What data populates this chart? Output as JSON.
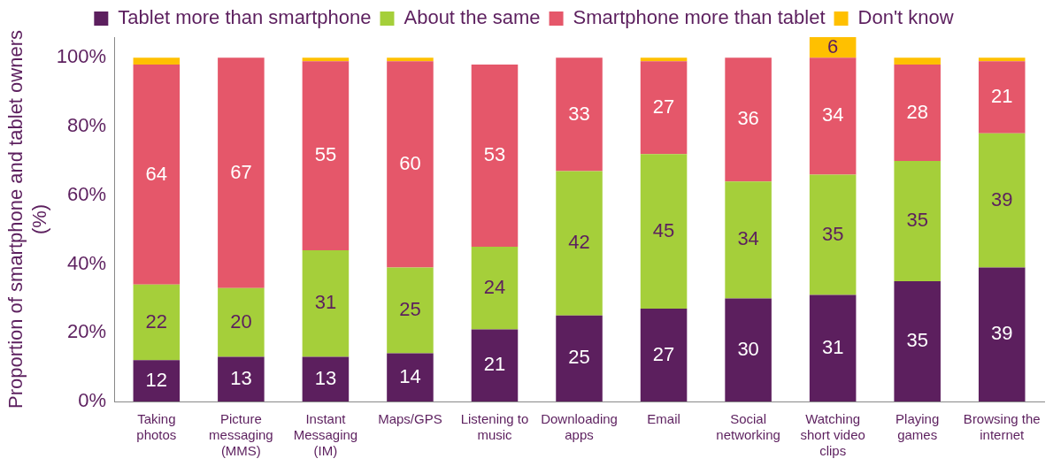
{
  "chart_data": {
    "type": "bar",
    "stacked": true,
    "categories": [
      "Taking photos",
      "Picture messaging (MMS)",
      "Instant Messaging (IM)",
      "Maps/GPS",
      "Listening to music",
      "Downloading apps",
      "Email",
      "Social networking",
      "Watching short video clips",
      "Playing games",
      "Browsing the internet"
    ],
    "series": [
      {
        "name": "Tablet more than smartphone",
        "color": "#5c1f5e",
        "values": [
          12,
          13,
          13,
          14,
          21,
          25,
          27,
          30,
          31,
          35,
          39
        ],
        "value_labels": [
          "12",
          "13",
          "13",
          "14",
          "21",
          "25",
          "27",
          "30",
          "31",
          "35",
          "39"
        ]
      },
      {
        "name": "About the same",
        "color": "#a5cf3a",
        "values": [
          22,
          20,
          31,
          25,
          24,
          42,
          45,
          34,
          35,
          35,
          39
        ],
        "value_labels": [
          "22",
          "20",
          "31",
          "25",
          "24",
          "42",
          "45",
          "34",
          "35",
          "35",
          "39"
        ]
      },
      {
        "name": "Smartphone more than tablet",
        "color": "#e5576a",
        "values": [
          64,
          67,
          55,
          60,
          53,
          33,
          27,
          36,
          34,
          28,
          21
        ],
        "value_labels": [
          "64",
          "67",
          "55",
          "60",
          "53",
          "33",
          "27",
          "36",
          "34",
          "28",
          "21"
        ]
      },
      {
        "name": "Don't know",
        "color": "#ffc000",
        "values": [
          2,
          null,
          1,
          1,
          null,
          null,
          1,
          null,
          6,
          2,
          1
        ],
        "value_labels": [
          null,
          null,
          null,
          null,
          null,
          null,
          null,
          null,
          "6",
          null,
          null
        ]
      }
    ],
    "ylabel": "Proportion of smartphone and tablet owners (%)",
    "ylim": [
      0,
      106
    ],
    "yticks": [
      {
        "value": 0,
        "label": "0%"
      },
      {
        "value": 20,
        "label": "20%"
      },
      {
        "value": 40,
        "label": "40%"
      },
      {
        "value": 60,
        "label": "60%"
      },
      {
        "value": 80,
        "label": "80%"
      },
      {
        "value": 100,
        "label": "100%"
      }
    ],
    "grid": false,
    "legend": "top"
  }
}
